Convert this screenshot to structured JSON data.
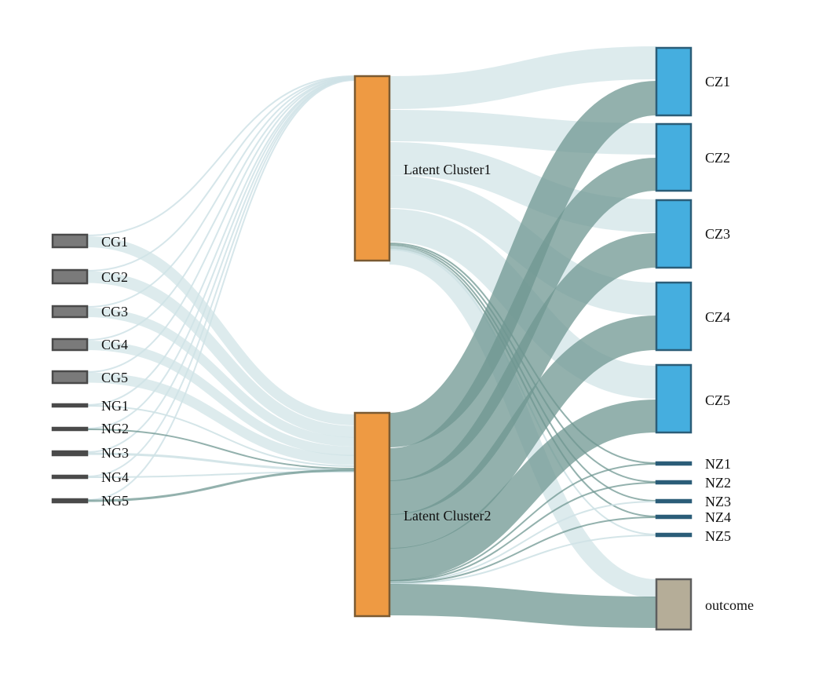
{
  "colors": {
    "flow_light": "#cfe2e6",
    "flow_dark": "#6f9791",
    "input_fill": "#7a7a7a",
    "input_stroke": "#4a4a4a",
    "latent_fill": "#ee9a43",
    "latent_stroke": "#7a5a32",
    "output_fill": "#45aedf",
    "output_stroke": "#2b5d78",
    "nz_stroke": "#2b5d78",
    "outcome_fill": "#b5ad98",
    "outcome_stroke": "#5e5e5e"
  },
  "nodes": [
    {
      "id": "CG1",
      "label": "CG1"
    },
    {
      "id": "CG2",
      "label": "CG2"
    },
    {
      "id": "CG3",
      "label": "CG3"
    },
    {
      "id": "CG4",
      "label": "CG4"
    },
    {
      "id": "CG5",
      "label": "CG5"
    },
    {
      "id": "NG1",
      "label": "NG1"
    },
    {
      "id": "NG2",
      "label": "NG2"
    },
    {
      "id": "NG3",
      "label": "NG3"
    },
    {
      "id": "NG4",
      "label": "NG4"
    },
    {
      "id": "NG5",
      "label": "NG5"
    },
    {
      "id": "LC1",
      "label": "Latent Cluster1"
    },
    {
      "id": "LC2",
      "label": "Latent Cluster2"
    },
    {
      "id": "CZ1",
      "label": "CZ1"
    },
    {
      "id": "CZ2",
      "label": "CZ2"
    },
    {
      "id": "CZ3",
      "label": "CZ3"
    },
    {
      "id": "CZ4",
      "label": "CZ4"
    },
    {
      "id": "CZ5",
      "label": "CZ5"
    },
    {
      "id": "NZ1",
      "label": "NZ1"
    },
    {
      "id": "NZ2",
      "label": "NZ2"
    },
    {
      "id": "NZ3",
      "label": "NZ3"
    },
    {
      "id": "NZ4",
      "label": "NZ4"
    },
    {
      "id": "NZ5",
      "label": "NZ5"
    },
    {
      "id": "outcome",
      "label": "outcome"
    }
  ]
}
